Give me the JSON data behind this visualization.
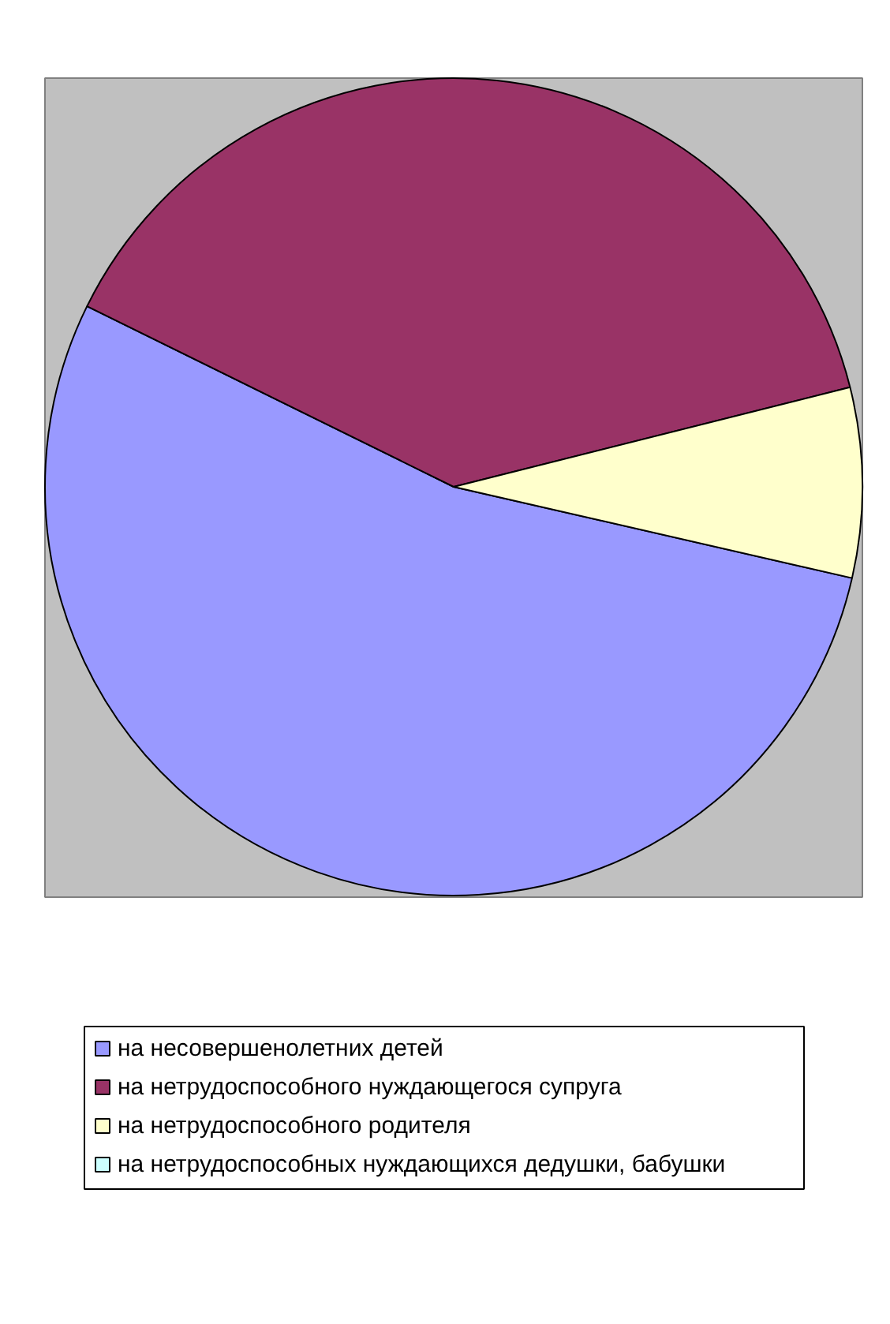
{
  "chart_data": {
    "type": "pie",
    "categories": [
      "на несовершенолетних детей",
      "на нетрудоспособного нуждающегося супруга",
      "на нетрудоспособного родителя",
      "на нетрудоспособных нуждающихся дедушки, бабушки"
    ],
    "values": [
      53.7,
      38.8,
      7.5,
      0
    ],
    "colors": [
      "#9999ff",
      "#993366",
      "#ffffcc",
      "#ccffff"
    ],
    "legend": "bottom"
  }
}
